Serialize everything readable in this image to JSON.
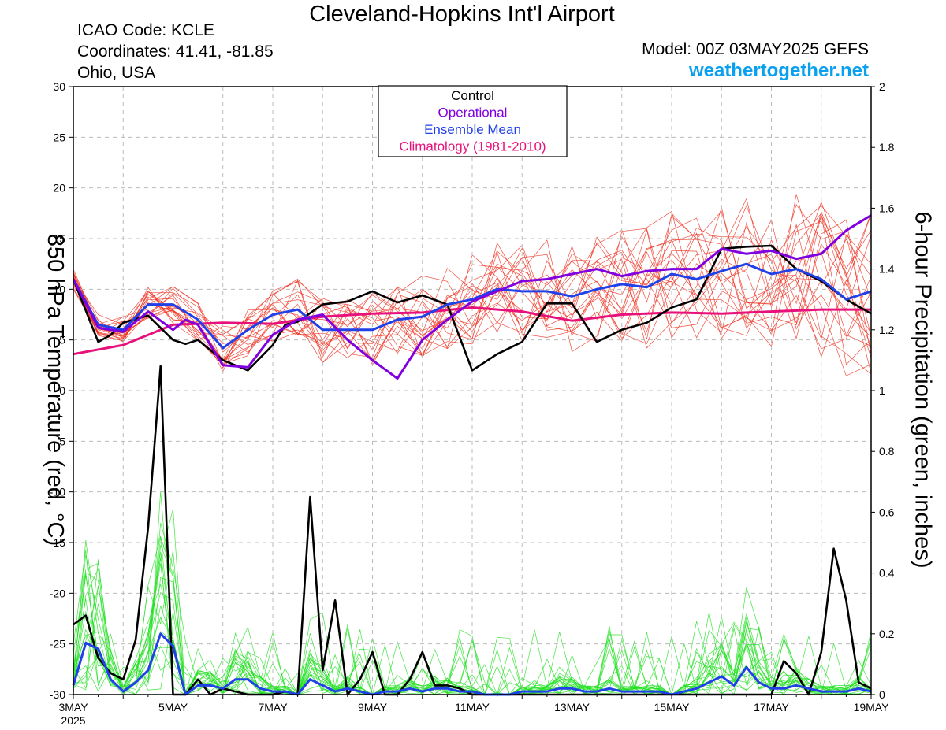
{
  "header": {
    "title": "Cleveland-Hopkins Int'l Airport",
    "icao": "ICAO Code: KCLE",
    "coords": "Coordinates: 41.41, -81.85",
    "region": "Ohio, USA",
    "model": "Model: 00Z 03MAY2025 GEFS",
    "site": "weathertogether.net"
  },
  "colors": {
    "control": "#000000",
    "operational": "#8000e0",
    "ensemble_mean": "#2040e8",
    "climatology": "#e8107a",
    "members_temp": "#f03020",
    "members_precip": "#20e020",
    "site": "#0aa0f0"
  },
  "chart_data": {
    "type": "line",
    "xlabel": "",
    "y_left_label": "850 hPa Temperature (red, °C)",
    "y_right_label": "6-hour Precipitation (green, inches)",
    "y_left_lim": [
      -30,
      30
    ],
    "y_right_lim": [
      0,
      2
    ],
    "y_left_ticks": [
      "30",
      "25",
      "20",
      "15",
      "10",
      "5",
      "0",
      "-5",
      "-10",
      "-15",
      "-20",
      "-25",
      "-30"
    ],
    "y_right_ticks": [
      "2",
      "1.8",
      "1.6",
      "1.4",
      "1.2",
      "1",
      "0.8",
      "0.6",
      "0.4",
      "0.2",
      "0"
    ],
    "x_ticks": [
      "3MAY",
      "5MAY",
      "7MAY",
      "9MAY",
      "11MAY",
      "13MAY",
      "15MAY",
      "17MAY",
      "19MAY"
    ],
    "x_year": "2025",
    "grid": true,
    "legend_position": "top-center",
    "legend": [
      "Control",
      "Operational",
      "Ensemble Mean",
      "Climatology (1981-2010)"
    ],
    "x_days_range": [
      0,
      16
    ],
    "series": [
      {
        "name": "Control",
        "axis": "left",
        "x": [
          0,
          0.5,
          0.75,
          1.0,
          1.5,
          2.0,
          2.25,
          2.5,
          3.0,
          3.5,
          4.0,
          4.25,
          4.5,
          5.0,
          5.5,
          6.0,
          6.5,
          7.0,
          7.5,
          8.0,
          8.5,
          9.0,
          9.5,
          10.0,
          10.5,
          11.0,
          11.5,
          12.0,
          12.5,
          13.0,
          13.5,
          14.0,
          14.5,
          15.0,
          15.5,
          16.0
        ],
        "values": [
          11,
          4.8,
          5.5,
          6.7,
          7.4,
          5.0,
          4.6,
          5.0,
          3.0,
          2.0,
          4.5,
          6.5,
          6.8,
          8.5,
          8.8,
          9.8,
          8.7,
          9.4,
          8.5,
          2.0,
          3.6,
          4.8,
          8.6,
          8.6,
          4.8,
          6.0,
          6.7,
          8.2,
          9.0,
          14.0,
          14.2,
          14.3,
          12.0,
          10.8,
          9.0,
          7.6
        ]
      },
      {
        "name": "Operational",
        "axis": "left",
        "x": [
          0,
          0.5,
          1.0,
          1.5,
          2.0,
          2.25,
          2.5,
          3.0,
          3.5,
          4.0,
          4.5,
          5.0,
          5.5,
          6.0,
          6.5,
          7.0,
          7.5,
          8.0,
          8.5,
          9.0,
          9.5,
          10.0,
          10.5,
          11.0,
          11.5,
          12.0,
          12.5,
          13.0,
          13.5,
          14.0,
          14.5,
          15.0,
          15.5,
          16.0
        ],
        "values": [
          11,
          6.2,
          5.8,
          7.8,
          6.0,
          7.0,
          6.5,
          2.5,
          2.3,
          5.5,
          7.0,
          7.5,
          5.0,
          3.0,
          1.2,
          5.0,
          7.0,
          8.8,
          9.8,
          10.8,
          11.0,
          11.5,
          12.0,
          11.3,
          11.8,
          12.0,
          12.0,
          14.0,
          13.5,
          13.8,
          13.0,
          13.5,
          15.8,
          17.3
        ]
      },
      {
        "name": "Ensemble Mean",
        "axis": "left",
        "x": [
          0,
          0.5,
          1.0,
          1.5,
          2.0,
          2.5,
          3.0,
          3.5,
          4.0,
          4.5,
          5.0,
          5.5,
          6.0,
          6.5,
          7.0,
          7.5,
          8.0,
          8.5,
          9.0,
          9.5,
          10.0,
          10.5,
          11.0,
          11.5,
          12.0,
          12.5,
          13.0,
          13.5,
          14.0,
          14.5,
          15.0,
          15.5,
          16.0
        ],
        "values": [
          11,
          6.5,
          6.0,
          8.5,
          8.5,
          7.0,
          4.2,
          6.0,
          7.5,
          8.0,
          6.0,
          6.0,
          6.0,
          7.0,
          7.3,
          8.5,
          9.0,
          10.0,
          9.8,
          9.8,
          9.3,
          10.0,
          10.5,
          10.2,
          11.5,
          11.0,
          11.8,
          12.5,
          11.5,
          12.0,
          11.0,
          9.0,
          9.8
        ]
      },
      {
        "name": "Climatology (1981-2010)",
        "axis": "left",
        "x": [
          0,
          1,
          2,
          3,
          4,
          5,
          6,
          7,
          8,
          9,
          10,
          11,
          12,
          13,
          14,
          15,
          16
        ],
        "values": [
          3.6,
          4.5,
          6.5,
          6.7,
          6.6,
          7.3,
          7.6,
          7.7,
          8.2,
          7.8,
          6.9,
          7.5,
          7.7,
          7.6,
          7.8,
          8.0,
          8.0
        ]
      },
      {
        "name": "Control",
        "axis": "right",
        "x": [
          0,
          0.25,
          0.5,
          0.75,
          1.0,
          1.25,
          1.5,
          1.75,
          2.0,
          2.25,
          2.5,
          2.75,
          3.0,
          3.25,
          3.5,
          3.75,
          4.0,
          4.25,
          4.5,
          4.75,
          5.0,
          5.25,
          5.5,
          5.75,
          6.0,
          6.25,
          6.5,
          6.75,
          7.0,
          7.25,
          7.5,
          7.75,
          8.0,
          8.25,
          8.5,
          8.75,
          9.0,
          9.25,
          9.5,
          9.75,
          10.0,
          10.25,
          10.5,
          10.75,
          11.0,
          11.25,
          11.5,
          11.75,
          12.0,
          12.25,
          12.5,
          12.75,
          13.0,
          13.25,
          13.5,
          13.75,
          14.0,
          14.25,
          14.5,
          14.75,
          15.0,
          15.25,
          15.5,
          15.75,
          16.0
        ],
        "values": [
          0.23,
          0.26,
          0.12,
          0.07,
          0.05,
          0.18,
          0.55,
          1.08,
          0.0,
          0.0,
          0.05,
          0.0,
          0.02,
          0.01,
          0.0,
          0.0,
          0.0,
          0.01,
          0.0,
          0.65,
          0.08,
          0.31,
          0.0,
          0.05,
          0.14,
          0.0,
          0.0,
          0.05,
          0.14,
          0.03,
          0.03,
          0.02,
          0.0,
          0.0,
          0.0,
          0.0,
          0.0,
          0.0,
          0.0,
          0.0,
          0.0,
          0.0,
          0.0,
          0.0,
          0.0,
          0.0,
          0.0,
          0.0,
          0.0,
          0.0,
          0.0,
          0.0,
          0.0,
          0.0,
          0.0,
          0.0,
          0.0,
          0.11,
          0.07,
          0.0,
          0.14,
          0.48,
          0.31,
          0.04,
          0.02
        ]
      },
      {
        "name": "Ensemble Mean",
        "axis": "right",
        "x": [
          0,
          0.25,
          0.5,
          0.75,
          1.0,
          1.25,
          1.5,
          1.75,
          2.0,
          2.25,
          2.5,
          2.75,
          3.0,
          3.25,
          3.5,
          3.75,
          4.0,
          4.25,
          4.5,
          4.75,
          5.0,
          5.25,
          5.5,
          5.75,
          6.0,
          6.25,
          6.5,
          6.75,
          7.0,
          7.25,
          7.5,
          7.75,
          8.0,
          8.25,
          8.5,
          8.75,
          9.0,
          9.25,
          9.5,
          9.75,
          10.0,
          10.25,
          10.5,
          10.75,
          11.0,
          11.25,
          11.5,
          11.75,
          12.0,
          12.25,
          12.5,
          12.75,
          13.0,
          13.25,
          13.5,
          13.75,
          14.0,
          14.25,
          14.5,
          14.75,
          15.0,
          15.25,
          15.5,
          15.75,
          16.0
        ],
        "values": [
          0.03,
          0.17,
          0.15,
          0.05,
          0.01,
          0.04,
          0.08,
          0.2,
          0.16,
          0.0,
          0.03,
          0.03,
          0.02,
          0.05,
          0.05,
          0.02,
          0.01,
          0.01,
          0.0,
          0.05,
          0.03,
          0.01,
          0.02,
          0.01,
          0.0,
          0.01,
          0.01,
          0.02,
          0.01,
          0.02,
          0.02,
          0.01,
          0.01,
          0.0,
          0.0,
          0.0,
          0.01,
          0.01,
          0.01,
          0.02,
          0.02,
          0.01,
          0.01,
          0.02,
          0.01,
          0.01,
          0.01,
          0.01,
          0.0,
          0.01,
          0.02,
          0.04,
          0.06,
          0.03,
          0.09,
          0.04,
          0.02,
          0.02,
          0.03,
          0.02,
          0.01,
          0.01,
          0.01,
          0.02,
          0.01
        ]
      }
    ]
  }
}
